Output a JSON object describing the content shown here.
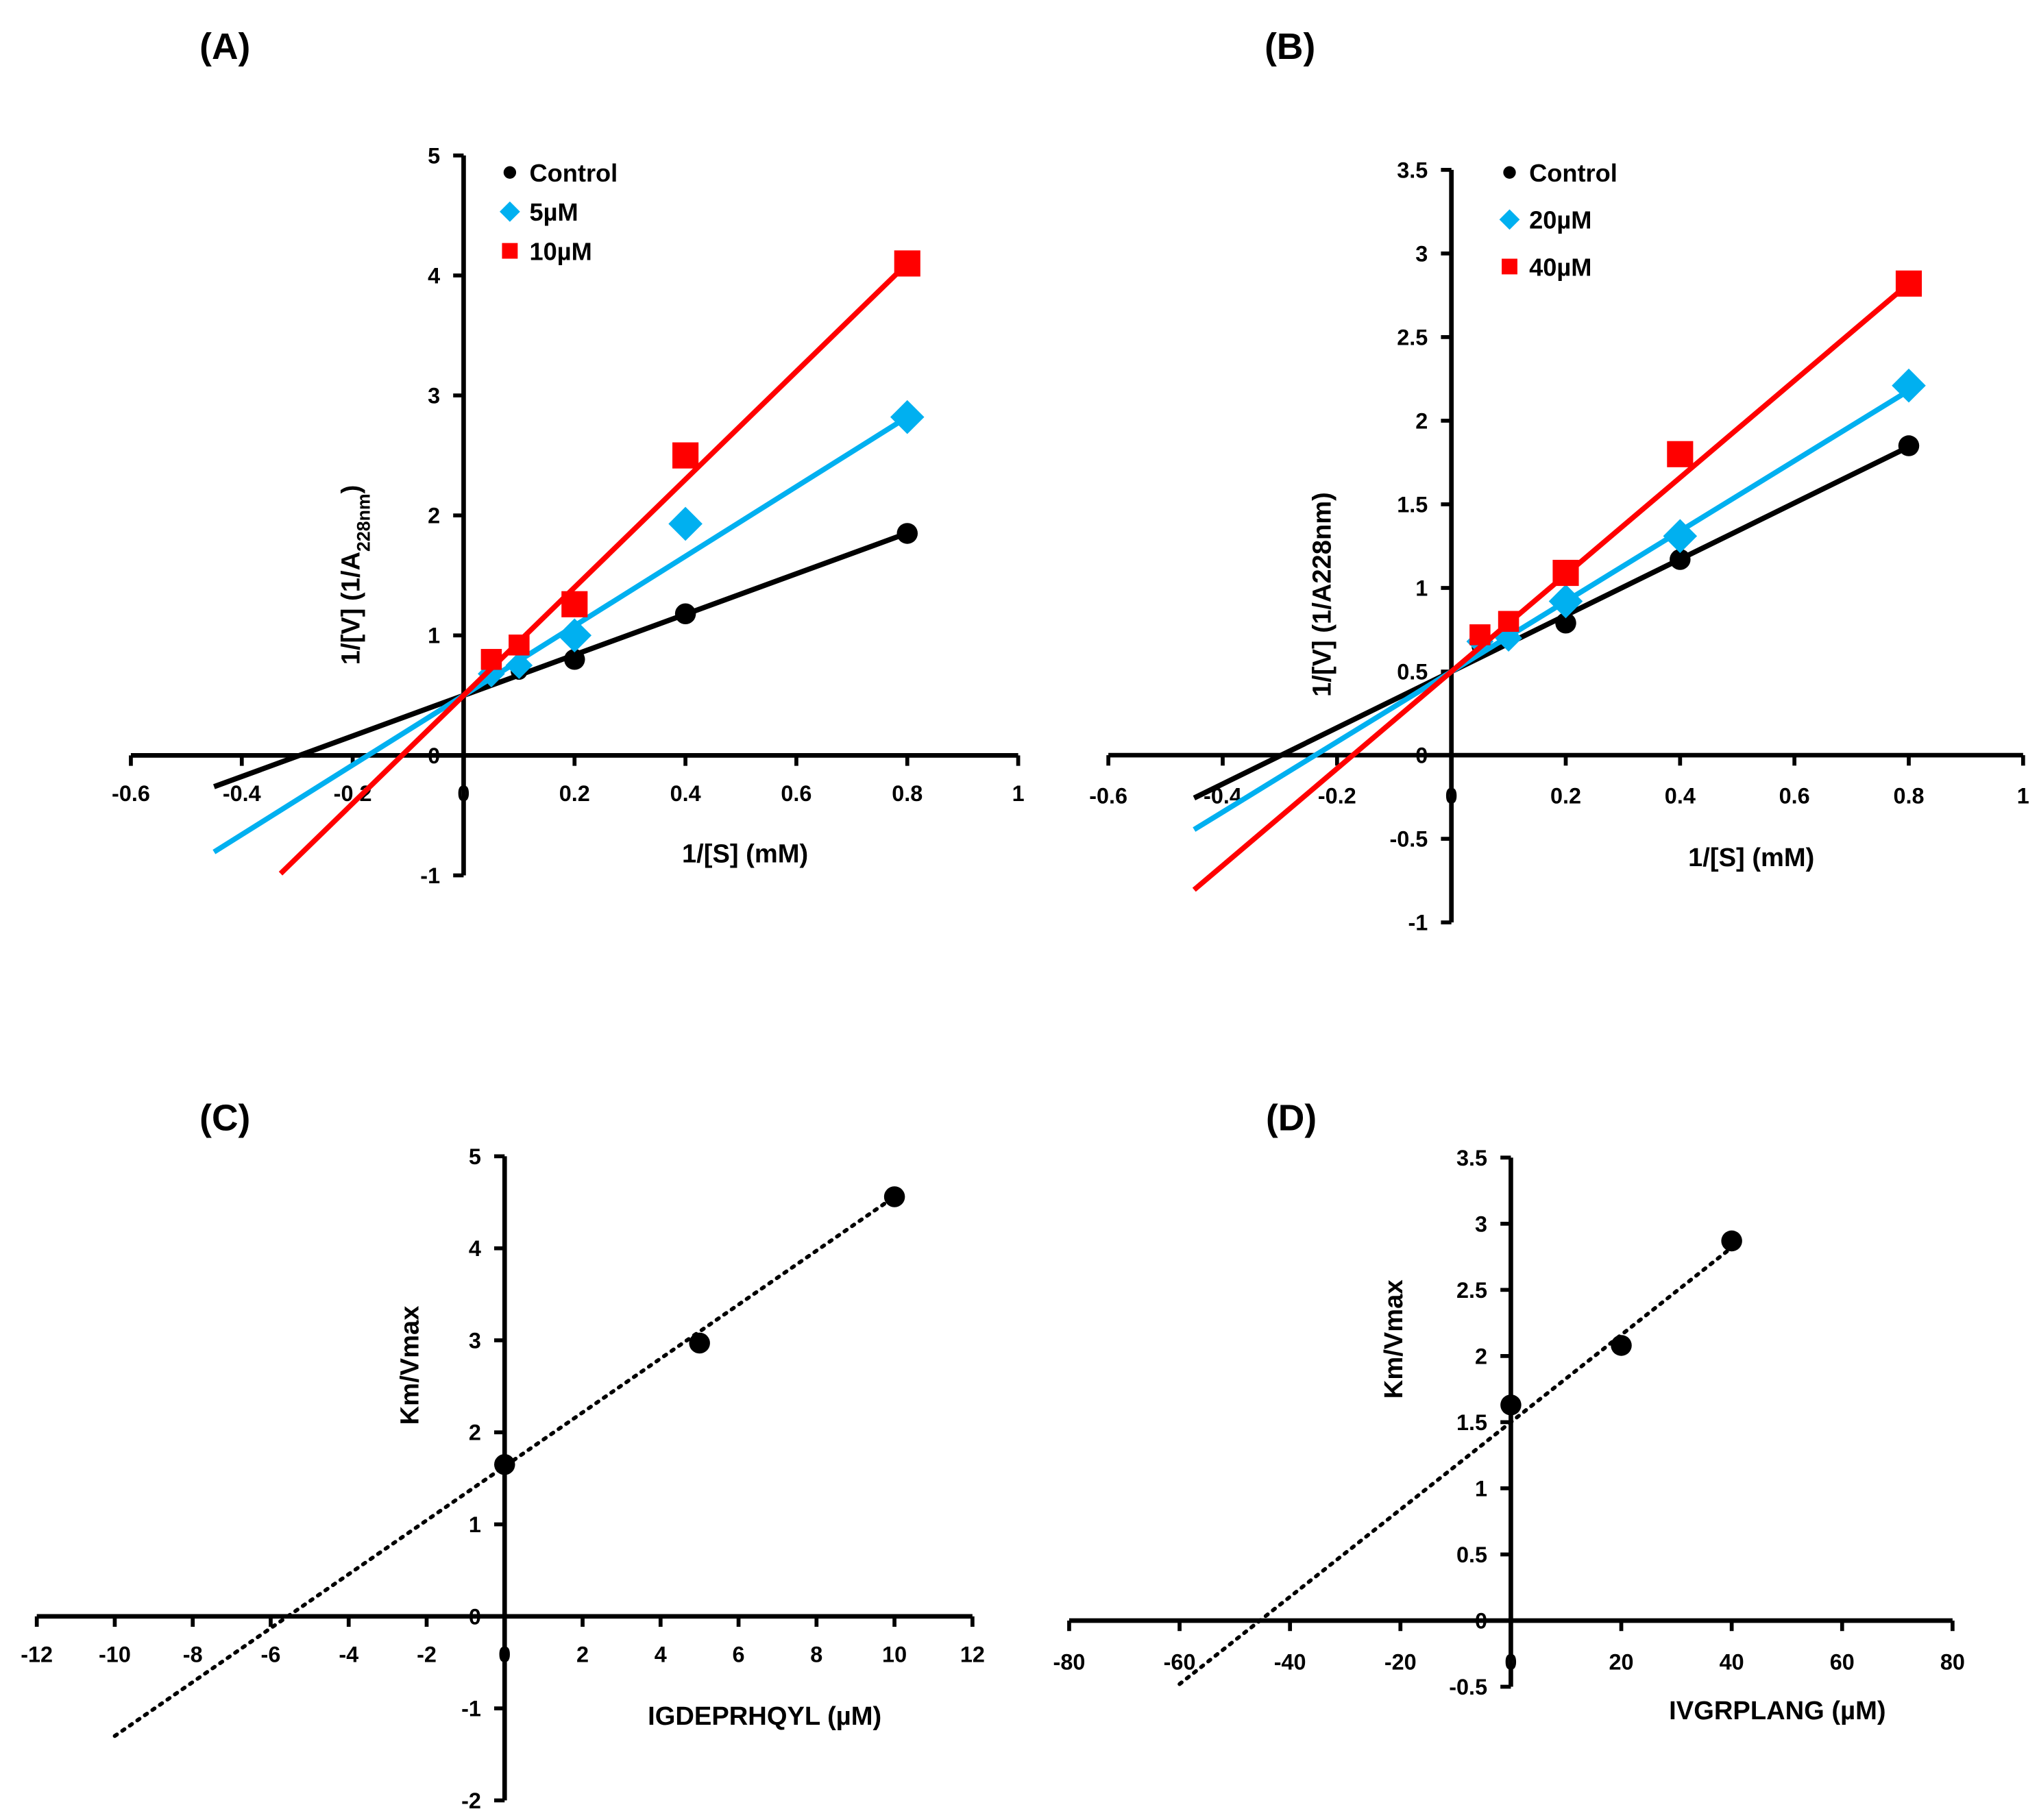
{
  "chart_data": [
    {
      "panel": "(A)",
      "type": "scatter",
      "xlabel": "1/[S] (mM)",
      "ylabel_main": "1/[V]  (1/A",
      "ylabel_sub": "228nm",
      "ylabel_end": ")",
      "xlim": [
        -0.6,
        1
      ],
      "ylim": [
        -1,
        5
      ],
      "xticks": [
        -0.6,
        -0.4,
        -0.2,
        0,
        0.2,
        0.4,
        0.6,
        0.8,
        1
      ],
      "yticks": [
        -1,
        0,
        1,
        2,
        3,
        4,
        5
      ],
      "legend_position": "top-left",
      "series": [
        {
          "name": "Control",
          "color": "#000000",
          "marker": "circle",
          "x": [
            0.05,
            0.1,
            0.2,
            0.4,
            0.8
          ],
          "y": [
            0.65,
            0.7,
            0.8,
            1.18,
            1.85
          ],
          "fit": {
            "slope": 1.69,
            "intercept": 0.5,
            "x_range": [
              -0.45,
              0.8
            ]
          }
        },
        {
          "name": "5µM",
          "color": "#00B0F0",
          "marker": "diamond",
          "x": [
            0.05,
            0.1,
            0.2,
            0.4,
            0.8
          ],
          "y": [
            0.68,
            0.75,
            1.0,
            1.93,
            2.82
          ],
          "fit": {
            "slope": 2.9,
            "intercept": 0.5,
            "x_range": [
              -0.45,
              0.8
            ]
          }
        },
        {
          "name": "10µM",
          "color": "#FF0000",
          "marker": "square",
          "x": [
            0.05,
            0.1,
            0.2,
            0.4,
            0.8
          ],
          "y": [
            0.8,
            0.92,
            1.26,
            2.5,
            4.1
          ],
          "fit": {
            "slope": 4.5,
            "intercept": 0.5,
            "x_range": [
              -0.33,
              0.8
            ]
          }
        }
      ]
    },
    {
      "panel": "(B)",
      "type": "scatter",
      "xlabel": "1/[S] (mM)",
      "ylabel_main": "1/[V]  (1/A228nm)",
      "ylabel_sub": "",
      "ylabel_end": "",
      "xlim": [
        -0.6,
        1
      ],
      "ylim": [
        -1,
        3.5
      ],
      "xticks": [
        -0.6,
        -0.4,
        -0.2,
        0,
        0.2,
        0.4,
        0.6,
        0.8,
        1
      ],
      "yticks": [
        -1,
        -0.5,
        0,
        0.5,
        1,
        1.5,
        2,
        2.5,
        3,
        3.5
      ],
      "legend_position": "top-left",
      "series": [
        {
          "name": "Control",
          "color": "#000000",
          "marker": "circle",
          "x": [
            0.05,
            0.1,
            0.2,
            0.4,
            0.8
          ],
          "y": [
            0.65,
            0.72,
            0.79,
            1.17,
            1.85
          ],
          "fit": {
            "slope": 1.68,
            "intercept": 0.5,
            "x_range": [
              -0.45,
              0.8
            ]
          }
        },
        {
          "name": "20µM",
          "color": "#00B0F0",
          "marker": "diamond",
          "x": [
            0.05,
            0.1,
            0.2,
            0.4,
            0.8
          ],
          "y": [
            0.68,
            0.7,
            0.92,
            1.31,
            2.21
          ],
          "fit": {
            "slope": 2.1,
            "intercept": 0.5,
            "x_range": [
              -0.45,
              0.8
            ]
          }
        },
        {
          "name": "40µM",
          "color": "#FF0000",
          "marker": "square",
          "x": [
            0.05,
            0.1,
            0.2,
            0.4,
            0.8
          ],
          "y": [
            0.72,
            0.8,
            1.09,
            1.8,
            2.82
          ],
          "fit": {
            "slope": 2.9,
            "intercept": 0.5,
            "x_range": [
              -0.45,
              0.8
            ]
          }
        }
      ]
    },
    {
      "panel": "(C)",
      "type": "scatter",
      "xlabel": "IGDEPRHQYL  (µM)",
      "ylabel_main": "Km/Vmax",
      "ylabel_sub": "",
      "ylabel_end": "",
      "xlim": [
        -12,
        12
      ],
      "ylim": [
        -2,
        5
      ],
      "xticks": [
        -12,
        -10,
        -8,
        -6,
        -4,
        -2,
        0,
        2,
        4,
        6,
        8,
        10,
        12
      ],
      "yticks": [
        -2,
        -1,
        0,
        1,
        2,
        3,
        4,
        5
      ],
      "series": [
        {
          "name": "Km/Vmax",
          "color": "#000000",
          "marker": "circle",
          "x": [
            0,
            5,
            10
          ],
          "y": [
            1.65,
            2.97,
            4.56
          ],
          "fit": {
            "slope": 0.293,
            "intercept": 1.63,
            "x_range": [
              -10,
              10
            ],
            "dotted": true
          }
        }
      ]
    },
    {
      "panel": "(D)",
      "type": "scatter",
      "xlabel": "IVGRPLANG (µM)",
      "ylabel_main": "Km/Vmax",
      "ylabel_sub": "",
      "ylabel_end": "",
      "xlim": [
        -80,
        80
      ],
      "ylim": [
        -0.5,
        3.5
      ],
      "xticks": [
        -80,
        -60,
        -40,
        -20,
        0,
        20,
        40,
        60,
        80
      ],
      "yticks": [
        -0.5,
        0,
        0.5,
        1,
        1.5,
        2,
        2.5,
        3,
        3.5
      ],
      "series": [
        {
          "name": "Km/Vmax",
          "color": "#000000",
          "marker": "circle",
          "x": [
            0,
            20,
            40
          ],
          "y": [
            1.63,
            2.08,
            2.87
          ],
          "fit": {
            "slope": 0.033,
            "intercept": 1.5,
            "x_range": [
              -60,
              40
            ],
            "dotted": true
          }
        }
      ]
    }
  ]
}
